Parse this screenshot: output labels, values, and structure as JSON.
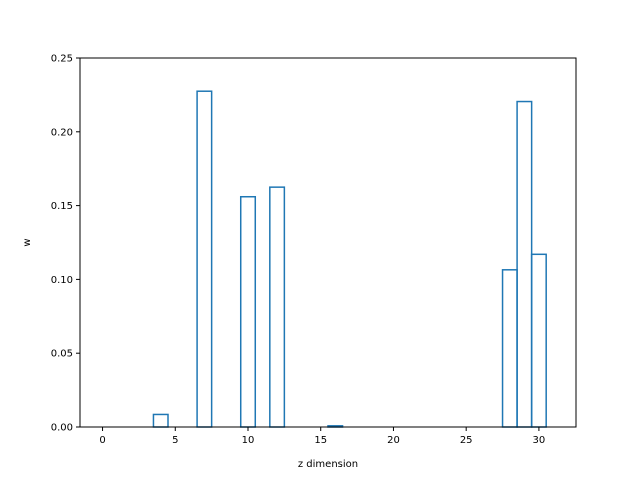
{
  "chart_data": {
    "type": "bar",
    "style": "step-histogram",
    "xlabel": "z dimension",
    "ylabel": "w",
    "xlim": [
      -1.55,
      32.55
    ],
    "ylim": [
      0,
      0.25
    ],
    "xticks": [
      0,
      5,
      10,
      15,
      20,
      25,
      30
    ],
    "yticks": [
      0.0,
      0.05,
      0.1,
      0.15,
      0.2,
      0.25
    ],
    "ytick_labels": [
      "0.00",
      "0.05",
      "0.10",
      "0.15",
      "0.20",
      "0.25"
    ],
    "grid": false,
    "line_color": "#1f77b4",
    "x": [
      0,
      1,
      2,
      3,
      4,
      5,
      6,
      7,
      8,
      9,
      10,
      11,
      12,
      13,
      14,
      15,
      16,
      17,
      18,
      19,
      20,
      21,
      22,
      23,
      24,
      25,
      26,
      27,
      28,
      29,
      30,
      31
    ],
    "values": [
      0,
      0,
      0,
      0,
      0.0085,
      0,
      0,
      0.2275,
      0,
      0,
      0.156,
      0,
      0.1625,
      0,
      0,
      0,
      0.0008,
      0,
      0,
      0,
      0,
      0,
      0,
      0,
      0,
      0,
      0,
      0,
      0.1065,
      0.2205,
      0.117,
      0
    ]
  }
}
